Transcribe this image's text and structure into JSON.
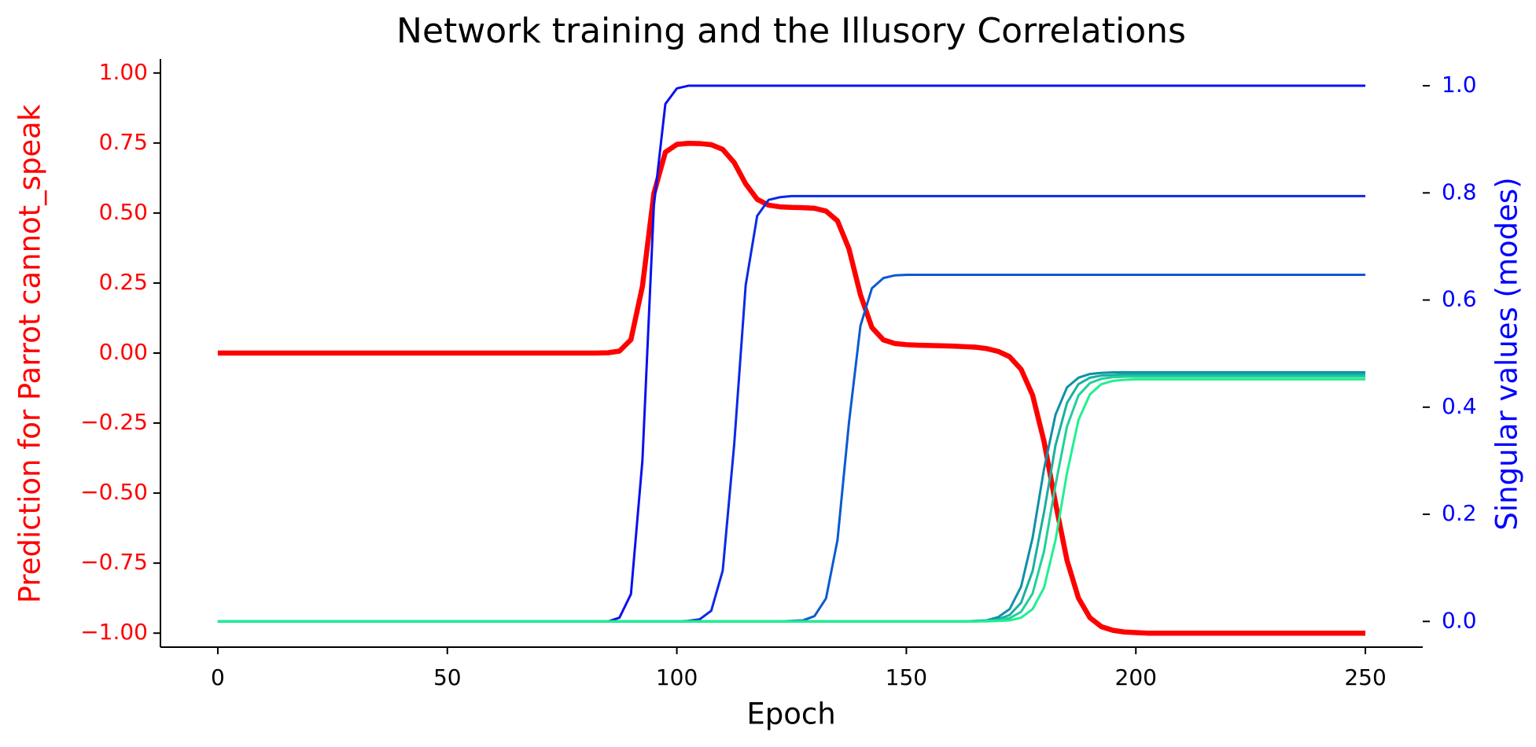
{
  "chart_data": {
    "type": "line",
    "title": "Network training and the Illusory Correlations",
    "xlabel": "Epoch",
    "ylabel": "Prediction for Parrot cannot_speak",
    "y2label": "Singular values (modes)",
    "ylabel_color": "#ff0000",
    "y2label_color": "#0000ff",
    "xlim": [
      -12.5,
      262.5
    ],
    "ylim": [
      -1.05,
      1.05
    ],
    "y2lim": [
      -0.048,
      1.05
    ],
    "xticks": [
      0,
      50,
      100,
      150,
      200,
      250
    ],
    "yticks": [
      {
        "value": -1,
        "label": "−1.00"
      },
      {
        "value": -0.75,
        "label": "−0.75"
      },
      {
        "value": -0.5,
        "label": "−0.50"
      },
      {
        "value": -0.25,
        "label": "−0.25"
      },
      {
        "value": 0,
        "label": "0.00"
      },
      {
        "value": 0.25,
        "label": "0.25"
      },
      {
        "value": 0.5,
        "label": "0.50"
      },
      {
        "value": 0.75,
        "label": "0.75"
      },
      {
        "value": 1,
        "label": "1.00"
      }
    ],
    "y2ticks": [
      {
        "value": 0,
        "label": "0.0"
      },
      {
        "value": 0.2,
        "label": "0.2"
      },
      {
        "value": 0.4,
        "label": "0.4"
      },
      {
        "value": 0.6,
        "label": "0.6"
      },
      {
        "value": 0.8,
        "label": "0.8"
      },
      {
        "value": 1,
        "label": "1.0"
      }
    ],
    "grid": false,
    "x": [
      0,
      2.5,
      5,
      7.5,
      10,
      12.5,
      15,
      17.5,
      20,
      22.5,
      25,
      27.5,
      30,
      32.5,
      35,
      37.5,
      40,
      42.5,
      45,
      47.5,
      50,
      52.5,
      55,
      57.5,
      60,
      62.5,
      65,
      67.5,
      70,
      72.5,
      75,
      77.5,
      80,
      82.5,
      85,
      87.5,
      90,
      92.5,
      95,
      97.5,
      100,
      102.5,
      105,
      107.5,
      110,
      112.5,
      115,
      117.5,
      120,
      122.5,
      125,
      127.5,
      130,
      132.5,
      135,
      137.5,
      140,
      142.5,
      145,
      147.5,
      150,
      152.5,
      155,
      157.5,
      160,
      162.5,
      165,
      167.5,
      170,
      172.5,
      175,
      177.5,
      180,
      182.5,
      185,
      187.5,
      190,
      192.5,
      195,
      197.5,
      200,
      202.5,
      205,
      207.5,
      210,
      212.5,
      215,
      217.5,
      220,
      222.5,
      225,
      227.5,
      230,
      232.5,
      235,
      237.5,
      240,
      242.5,
      245,
      247.5,
      250
    ],
    "series": [
      {
        "color": "#ff0000",
        "axis": "y",
        "values": [
          0,
          0,
          0,
          0,
          0,
          0,
          0,
          0,
          0,
          0,
          0,
          0,
          0,
          0,
          0,
          0,
          0,
          0,
          0,
          0,
          0,
          0,
          0,
          0,
          0,
          0,
          0,
          0,
          0,
          0,
          0,
          0,
          0,
          0,
          0.001,
          0.007,
          0.048,
          0.238,
          0.57,
          0.717,
          0.745,
          0.749,
          0.748,
          0.744,
          0.727,
          0.68,
          0.604,
          0.549,
          0.528,
          0.522,
          0.52,
          0.519,
          0.517,
          0.507,
          0.472,
          0.372,
          0.208,
          0.091,
          0.047,
          0.034,
          0.03,
          0.028,
          0.027,
          0.026,
          0.025,
          0.023,
          0.021,
          0.016,
          0.006,
          -0.013,
          -0.058,
          -0.15,
          -0.316,
          -0.536,
          -0.74,
          -0.875,
          -0.945,
          -0.977,
          -0.99,
          -0.996,
          -0.998,
          -1,
          -1,
          -1,
          -1,
          -1,
          -1,
          -1,
          -1,
          -1,
          -1,
          -1,
          -1,
          -1,
          -1,
          -1,
          -1,
          -1,
          -1,
          -1,
          -1
        ]
      },
      {
        "color": "#0a10f0",
        "axis": "y2",
        "values": [
          0,
          0,
          0,
          0,
          0,
          0,
          0,
          0,
          0,
          0,
          0,
          0,
          0,
          0,
          0,
          0,
          0,
          0,
          0,
          0,
          0,
          0,
          0,
          0,
          0,
          0,
          0,
          0,
          0,
          0,
          0,
          0,
          0,
          0,
          0,
          0.007,
          0.051,
          0.3,
          0.777,
          0.966,
          0.995,
          1,
          1,
          1,
          1,
          1,
          1,
          1,
          1,
          1,
          1,
          1,
          1,
          1,
          1,
          1,
          1,
          1,
          1,
          1,
          1,
          1,
          1,
          1,
          1,
          1,
          1,
          1,
          1,
          1,
          1,
          1,
          1,
          1,
          1,
          1,
          1,
          1,
          1,
          1,
          1,
          1,
          1,
          1,
          1,
          1,
          1,
          1,
          1,
          1,
          1,
          1,
          1,
          1,
          1,
          1,
          1,
          1,
          1,
          1,
          1
        ]
      },
      {
        "color": "#0a2ae6",
        "axis": "y2",
        "values": [
          0,
          0,
          0,
          0,
          0,
          0,
          0,
          0,
          0,
          0,
          0,
          0,
          0,
          0,
          0,
          0,
          0,
          0,
          0,
          0,
          0,
          0,
          0,
          0,
          0,
          0,
          0,
          0,
          0,
          0,
          0,
          0,
          0,
          0,
          0,
          0,
          0,
          0,
          0,
          0,
          0,
          0.001,
          0.004,
          0.02,
          0.095,
          0.331,
          0.628,
          0.757,
          0.787,
          0.792,
          0.794,
          0.794,
          0.794,
          0.794,
          0.794,
          0.794,
          0.794,
          0.794,
          0.794,
          0.794,
          0.794,
          0.794,
          0.794,
          0.794,
          0.794,
          0.794,
          0.794,
          0.794,
          0.794,
          0.794,
          0.794,
          0.794,
          0.794,
          0.794,
          0.794,
          0.794,
          0.794,
          0.794,
          0.794,
          0.794,
          0.794,
          0.794,
          0.794,
          0.794,
          0.794,
          0.794,
          0.794,
          0.794,
          0.794,
          0.794,
          0.794,
          0.794,
          0.794,
          0.794,
          0.794,
          0.794,
          0.794,
          0.794,
          0.794,
          0.794,
          0.794
        ]
      },
      {
        "color": "#0a5ad0",
        "axis": "y2",
        "values": [
          0,
          0,
          0,
          0,
          0,
          0,
          0,
          0,
          0,
          0,
          0,
          0,
          0,
          0,
          0,
          0,
          0,
          0,
          0,
          0,
          0,
          0,
          0,
          0,
          0,
          0,
          0,
          0,
          0,
          0,
          0,
          0,
          0,
          0,
          0,
          0,
          0,
          0,
          0,
          0,
          0,
          0,
          0,
          0,
          0,
          0,
          0,
          0,
          0,
          0,
          0.001,
          0.002,
          0.01,
          0.043,
          0.152,
          0.371,
          0.552,
          0.622,
          0.641,
          0.646,
          0.647,
          0.647,
          0.647,
          0.647,
          0.647,
          0.647,
          0.647,
          0.647,
          0.647,
          0.647,
          0.647,
          0.647,
          0.647,
          0.647,
          0.647,
          0.647,
          0.647,
          0.647,
          0.647,
          0.647,
          0.647,
          0.647,
          0.647,
          0.647,
          0.647,
          0.647,
          0.647,
          0.647,
          0.647,
          0.647,
          0.647,
          0.647,
          0.647,
          0.647,
          0.647,
          0.647,
          0.647,
          0.647,
          0.647,
          0.647,
          0.647
        ]
      },
      {
        "color": "#1090a8",
        "axis": "y2",
        "values": [
          0,
          0,
          0,
          0,
          0,
          0,
          0,
          0,
          0,
          0,
          0,
          0,
          0,
          0,
          0,
          0,
          0,
          0,
          0,
          0,
          0,
          0,
          0,
          0,
          0,
          0,
          0,
          0,
          0,
          0,
          0,
          0,
          0,
          0,
          0,
          0,
          0,
          0,
          0,
          0,
          0,
          0,
          0,
          0,
          0,
          0,
          0,
          0,
          0,
          0,
          0,
          0,
          0,
          0,
          0,
          0,
          0,
          0,
          0,
          0,
          0,
          0,
          0,
          0,
          0,
          0,
          0.001,
          0.002,
          0.008,
          0.023,
          0.065,
          0.156,
          0.285,
          0.386,
          0.437,
          0.455,
          0.462,
          0.464,
          0.465,
          0.465,
          0.465,
          0.465,
          0.465,
          0.465,
          0.465,
          0.465,
          0.465,
          0.465,
          0.465,
          0.465,
          0.465,
          0.465,
          0.465,
          0.465,
          0.465,
          0.465,
          0.465,
          0.465,
          0.465,
          0.465,
          0.465
        ]
      },
      {
        "color": "#18b0a0",
        "axis": "y2",
        "values": [
          0,
          0,
          0,
          0,
          0,
          0,
          0,
          0,
          0,
          0,
          0,
          0,
          0,
          0,
          0,
          0,
          0,
          0,
          0,
          0,
          0,
          0,
          0,
          0,
          0,
          0,
          0,
          0,
          0,
          0,
          0,
          0,
          0,
          0,
          0,
          0,
          0,
          0,
          0,
          0,
          0,
          0,
          0,
          0,
          0,
          0,
          0,
          0,
          0,
          0,
          0,
          0,
          0,
          0,
          0,
          0,
          0,
          0,
          0,
          0,
          0,
          0,
          0,
          0,
          0,
          0,
          0,
          0.001,
          0.004,
          0.012,
          0.035,
          0.094,
          0.204,
          0.329,
          0.408,
          0.443,
          0.455,
          0.459,
          0.46,
          0.461,
          0.461,
          0.461,
          0.461,
          0.461,
          0.461,
          0.461,
          0.461,
          0.461,
          0.461,
          0.461,
          0.461,
          0.461,
          0.461,
          0.461,
          0.461,
          0.461,
          0.461,
          0.461,
          0.461,
          0.461,
          0.461
        ]
      },
      {
        "color": "#22d098",
        "axis": "y2",
        "values": [
          0,
          0,
          0,
          0,
          0,
          0,
          0,
          0,
          0,
          0,
          0,
          0,
          0,
          0,
          0,
          0,
          0,
          0,
          0,
          0,
          0,
          0,
          0,
          0,
          0,
          0,
          0,
          0,
          0,
          0,
          0,
          0,
          0,
          0,
          0,
          0,
          0,
          0,
          0,
          0,
          0,
          0,
          0,
          0,
          0,
          0,
          0,
          0,
          0,
          0,
          0,
          0,
          0,
          0,
          0,
          0,
          0,
          0,
          0,
          0,
          0,
          0,
          0,
          0,
          0,
          0,
          0,
          0.001,
          0.002,
          0.006,
          0.018,
          0.052,
          0.131,
          0.255,
          0.364,
          0.422,
          0.445,
          0.453,
          0.456,
          0.457,
          0.457,
          0.457,
          0.457,
          0.457,
          0.457,
          0.457,
          0.457,
          0.457,
          0.457,
          0.457,
          0.457,
          0.457,
          0.457,
          0.457,
          0.457,
          0.457,
          0.457,
          0.457,
          0.457,
          0.457,
          0.457
        ]
      },
      {
        "color": "#20f090",
        "axis": "y2",
        "values": [
          0,
          0,
          0,
          0,
          0,
          0,
          0,
          0,
          0,
          0,
          0,
          0,
          0,
          0,
          0,
          0,
          0,
          0,
          0,
          0,
          0,
          0,
          0,
          0,
          0,
          0,
          0,
          0,
          0,
          0,
          0,
          0,
          0,
          0,
          0,
          0,
          0,
          0,
          0,
          0,
          0,
          0,
          0,
          0,
          0,
          0,
          0,
          0,
          0,
          0,
          0,
          0,
          0,
          0,
          0,
          0,
          0,
          0,
          0,
          0,
          0,
          0,
          0,
          0,
          0,
          0,
          0,
          0,
          0.001,
          0.002,
          0.007,
          0.023,
          0.063,
          0.152,
          0.277,
          0.376,
          0.424,
          0.443,
          0.449,
          0.451,
          0.452,
          0.452,
          0.452,
          0.452,
          0.452,
          0.452,
          0.452,
          0.452,
          0.452,
          0.452,
          0.452,
          0.452,
          0.452,
          0.452,
          0.452,
          0.452,
          0.452,
          0.452,
          0.452,
          0.452,
          0.452
        ]
      }
    ]
  }
}
